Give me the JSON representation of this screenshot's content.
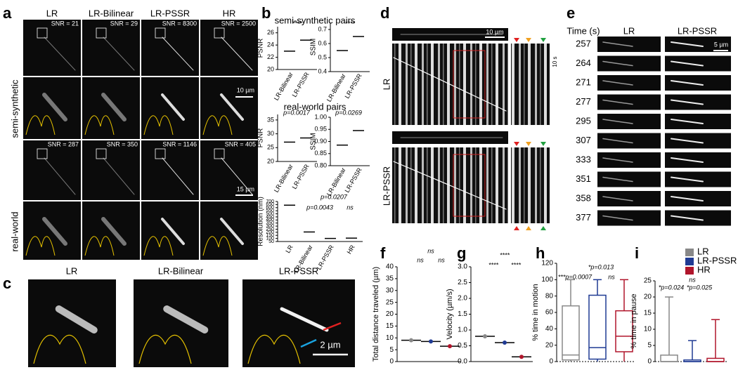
{
  "figure": {
    "panel_letters": [
      "a",
      "b",
      "c",
      "d",
      "e",
      "f",
      "g",
      "h",
      "i"
    ],
    "a": {
      "columns": [
        "LR",
        "LR-Bilinear",
        "LR-PSSR",
        "HR"
      ],
      "rows": [
        "semi-synthetic",
        "real-world"
      ],
      "snr_semi": [
        "SNR = 21",
        "SNR = 29",
        "SNR = 8300",
        "SNR = 2500"
      ],
      "snr_real": [
        "SNR = 287",
        "SNR = 350",
        "SNR = 1146",
        "SNR = 405"
      ],
      "scale_semi": "10 µm",
      "scale_real": "15 µm"
    },
    "b": {
      "semi_title": "semi-synthetic pairs",
      "real_title": "real-world pairs"
    },
    "c": {
      "columns": [
        "LR",
        "LR-Bilinear",
        "LR-PSSR"
      ],
      "scale": "2 µm"
    },
    "d": {
      "rows": [
        "LR",
        "LR-PSSR"
      ],
      "scale_x": "10 µm",
      "scale_t": "10 s"
    },
    "e": {
      "time_header": "Time (s)",
      "columns": [
        "LR",
        "LR-PSSR"
      ],
      "times": [
        "257",
        "264",
        "271",
        "277",
        "295",
        "307",
        "333",
        "351",
        "358",
        "377"
      ],
      "scale": "5 µm"
    }
  },
  "chart_data": [
    {
      "type": "mean",
      "ylabel": "PSNR",
      "categories": [
        "LR-Bilinear",
        "LR-PSSR"
      ],
      "values": [
        23,
        24.8
      ],
      "color": "#000000",
      "ylim": [
        20,
        27
      ],
      "yticks": [
        20,
        22,
        24,
        26
      ],
      "annotations": [
        "****"
      ]
    },
    {
      "type": "mean",
      "ylabel": "SSIM",
      "categories": [
        "LR-Bilinear",
        "LR-PSSR"
      ],
      "values": [
        0.55,
        0.65
      ],
      "color": "#000000",
      "ylim": [
        0.4,
        0.75
      ],
      "yticks": [
        0.4,
        0.5,
        0.6,
        0.7
      ],
      "annotations": [
        "****"
      ]
    },
    {
      "type": "mean",
      "ylabel": "PSNR",
      "categories": [
        "LR-Bilinear",
        "LR-PSSR"
      ],
      "values": [
        27,
        28.5
      ],
      "color": "#000000",
      "ylim": [
        20,
        37
      ],
      "yticks": [
        20,
        25,
        30,
        35
      ],
      "annotations": [
        "p=0.0017"
      ]
    },
    {
      "type": "mean",
      "ylabel": "SSIM",
      "categories": [
        "LR-Bilinear",
        "LR-PSSR"
      ],
      "values": [
        0.885,
        0.945
      ],
      "color": "#000000",
      "ylim": [
        0.8,
        1.0
      ],
      "yticks": [
        {
          "value": 0.8,
          "label": "0.80"
        },
        0.85,
        {
          "value": 0.9,
          "label": "0.90"
        },
        0.95,
        {
          "value": 1,
          "label": "1.00"
        }
      ],
      "annotations": [
        "p=0.0269"
      ]
    },
    {
      "type": "mean",
      "ylabel": "Resolution (nm)",
      "categories": [
        "LR",
        "LR-Bilinear",
        "LR-PSSR",
        "HR"
      ],
      "values": [
        640,
        205,
        100,
        105
      ],
      "color": "#000000",
      "ylim": [
        50,
        700
      ],
      "yticks": [
        50,
        100,
        150,
        200,
        250,
        300,
        350,
        400,
        450,
        500,
        550,
        600,
        650,
        700
      ],
      "annotations": [
        "p=0.0207",
        "p=0.0043",
        "ns"
      ]
    },
    {
      "type": "mean",
      "ylabel": "Total distance traveled (µm)",
      "values": [
        9,
        8.5,
        6.5
      ],
      "colors": [
        "#888888",
        "#1f3a93",
        "#b0152b"
      ],
      "ylim": [
        0,
        40
      ],
      "yticks": [
        0,
        5,
        10,
        15,
        20,
        25,
        30,
        35,
        40
      ],
      "annotations": [
        "ns",
        "ns",
        "ns"
      ]
    },
    {
      "type": "mean",
      "ylabel": "Velocity (µm/s)",
      "values": [
        0.8,
        0.6,
        0.15
      ],
      "colors": [
        "#888888",
        "#1f3a93",
        "#b0152b"
      ],
      "ylim": [
        0,
        3
      ],
      "yticks": [
        {
          "value": 0,
          "label": "0.0"
        },
        0.5,
        {
          "value": 1,
          "label": "1.0"
        },
        1.5,
        {
          "value": 2,
          "label": "2.0"
        },
        2.5,
        {
          "value": 3,
          "label": "3.0"
        }
      ],
      "annotations": [
        "****",
        "****",
        "****"
      ]
    },
    {
      "type": "box",
      "ylabel": "% time in motion",
      "boxes": [
        {
          "color": "#888888",
          "values": [
            0,
            2,
            8,
            68,
            100
          ]
        },
        {
          "color": "#1f3a93",
          "values": [
            0,
            3,
            17,
            81,
            100
          ]
        },
        {
          "color": "#b0152b",
          "values": [
            0,
            12,
            31,
            62,
            100
          ]
        }
      ],
      "ylim": [
        0,
        120
      ],
      "yticks": [
        0,
        20,
        40,
        60,
        80,
        100,
        120
      ],
      "annotations": [
        "*p=0.013",
        "***p=0.0007",
        "ns"
      ]
    },
    {
      "type": "box",
      "ylabel": "% time in pause",
      "boxes": [
        {
          "color": "#888888",
          "values": [
            0,
            0,
            0,
            2,
            20
          ]
        },
        {
          "color": "#1f3a93",
          "values": [
            0,
            0,
            0,
            0.5,
            6.5
          ]
        },
        {
          "color": "#b0152b",
          "values": [
            0,
            0,
            0,
            1,
            13
          ]
        }
      ],
      "ylim": [
        0,
        25
      ],
      "yticks": [
        0,
        5,
        10,
        15,
        20,
        25
      ],
      "annotations": [
        "*p=0.024",
        "*p=0.025",
        "ns"
      ],
      "series": [
        {
          "name": "LR",
          "color": "#888888"
        },
        {
          "name": "LR-PSSR",
          "color": "#1f3a93"
        },
        {
          "name": "HR",
          "color": "#b0152b"
        }
      ]
    }
  ]
}
